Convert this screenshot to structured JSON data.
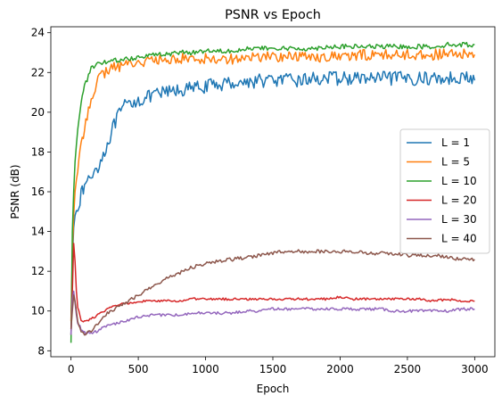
{
  "chart_data": {
    "type": "line",
    "title": "PSNR vs Epoch",
    "xlabel": "Epoch",
    "ylabel": "PSNR (dB)",
    "xlim": [
      -150,
      3150
    ],
    "ylim": [
      7.7,
      24.3
    ],
    "xticks": [
      0,
      500,
      1000,
      1500,
      2000,
      2500,
      3000
    ],
    "yticks": [
      8,
      10,
      12,
      14,
      16,
      18,
      20,
      22,
      24
    ],
    "grid": false,
    "legend_position": "center-right",
    "series": [
      {
        "name": "L = 1",
        "color": "#1f77b4",
        "x": [
          0,
          10,
          20,
          30,
          50,
          75,
          100,
          150,
          200,
          250,
          300,
          350,
          400,
          450,
          500,
          600,
          700,
          800,
          900,
          1000,
          1100,
          1200,
          1300,
          1400,
          1500,
          1600,
          1700,
          1800,
          1900,
          2000,
          2100,
          2200,
          2300,
          2400,
          2500,
          2600,
          2700,
          2800,
          2900,
          3000
        ],
        "y": [
          8.8,
          12.5,
          14.2,
          14.8,
          15.3,
          15.8,
          16.3,
          16.8,
          17.3,
          18.0,
          19.0,
          19.8,
          20.3,
          20.5,
          20.6,
          20.8,
          21.0,
          21.1,
          21.2,
          21.3,
          21.4,
          21.5,
          21.5,
          21.6,
          21.6,
          21.6,
          21.6,
          21.7,
          21.7,
          21.7,
          21.7,
          21.7,
          21.7,
          21.7,
          21.7,
          21.7,
          21.7,
          21.7,
          21.8,
          21.6
        ]
      },
      {
        "name": "L = 5",
        "color": "#ff7f0e",
        "x": [
          0,
          10,
          20,
          30,
          50,
          75,
          100,
          150,
          200,
          250,
          300,
          350,
          400,
          450,
          500,
          600,
          700,
          800,
          900,
          1000,
          1100,
          1200,
          1300,
          1400,
          1500,
          1600,
          1700,
          1800,
          1900,
          2000,
          2100,
          2200,
          2300,
          2400,
          2500,
          2600,
          2700,
          2800,
          2900,
          3000
        ],
        "y": [
          9.5,
          13.0,
          14.8,
          16.0,
          17.2,
          18.2,
          19.2,
          20.8,
          21.6,
          22.0,
          22.2,
          22.3,
          22.4,
          22.5,
          22.5,
          22.6,
          22.6,
          22.7,
          22.7,
          22.7,
          22.7,
          22.7,
          22.7,
          22.8,
          22.8,
          22.8,
          22.8,
          22.8,
          22.8,
          22.8,
          22.8,
          22.9,
          22.9,
          22.9,
          22.9,
          22.9,
          22.9,
          22.9,
          22.9,
          22.9
        ]
      },
      {
        "name": "L = 10",
        "color": "#2ca02c",
        "x": [
          0,
          10,
          20,
          30,
          50,
          75,
          100,
          150,
          200,
          250,
          300,
          350,
          400,
          450,
          500,
          600,
          700,
          800,
          900,
          1000,
          1100,
          1200,
          1300,
          1400,
          1500,
          1600,
          1700,
          1800,
          1900,
          2000,
          2100,
          2200,
          2300,
          2400,
          2500,
          2600,
          2700,
          2800,
          2900,
          3000
        ],
        "y": [
          8.4,
          14.0,
          16.0,
          17.5,
          19.2,
          20.5,
          21.3,
          22.2,
          22.4,
          22.5,
          22.6,
          22.6,
          22.7,
          22.7,
          22.8,
          22.9,
          22.9,
          23.0,
          23.0,
          23.1,
          23.1,
          23.1,
          23.2,
          23.2,
          23.2,
          23.2,
          23.2,
          23.2,
          23.3,
          23.3,
          23.3,
          23.3,
          23.3,
          23.3,
          23.3,
          23.3,
          23.3,
          23.4,
          23.4,
          23.4
        ]
      },
      {
        "name": "L = 20",
        "color": "#d62728",
        "x": [
          0,
          10,
          20,
          30,
          40,
          50,
          75,
          100,
          150,
          200,
          250,
          300,
          350,
          400,
          450,
          500,
          600,
          700,
          800,
          900,
          1000,
          1100,
          1200,
          1300,
          1400,
          1500,
          1600,
          1700,
          1800,
          1900,
          2000,
          2100,
          2200,
          2300,
          2400,
          2500,
          2600,
          2700,
          2800,
          2900,
          3000
        ],
        "y": [
          8.8,
          11.0,
          13.4,
          12.5,
          11.0,
          10.2,
          9.5,
          9.5,
          9.6,
          9.8,
          10.0,
          10.2,
          10.3,
          10.4,
          10.4,
          10.5,
          10.5,
          10.5,
          10.5,
          10.6,
          10.6,
          10.6,
          10.6,
          10.6,
          10.6,
          10.6,
          10.6,
          10.6,
          10.6,
          10.6,
          10.7,
          10.6,
          10.6,
          10.6,
          10.6,
          10.6,
          10.6,
          10.5,
          10.6,
          10.5,
          10.5
        ]
      },
      {
        "name": "L = 30",
        "color": "#9467bd",
        "x": [
          0,
          10,
          20,
          30,
          40,
          50,
          75,
          100,
          150,
          200,
          250,
          300,
          350,
          400,
          450,
          500,
          600,
          700,
          800,
          900,
          1000,
          1100,
          1200,
          1300,
          1400,
          1500,
          1600,
          1700,
          1800,
          1900,
          2000,
          2100,
          2200,
          2300,
          2400,
          2500,
          2600,
          2700,
          2800,
          2900,
          3000
        ],
        "y": [
          8.8,
          10.6,
          11.0,
          10.4,
          9.8,
          9.4,
          9.1,
          8.9,
          8.9,
          9.0,
          9.2,
          9.3,
          9.4,
          9.5,
          9.6,
          9.7,
          9.8,
          9.8,
          9.8,
          9.9,
          9.9,
          9.9,
          9.9,
          10.0,
          10.0,
          10.1,
          10.1,
          10.1,
          10.1,
          10.1,
          10.1,
          10.1,
          10.1,
          10.1,
          10.0,
          10.0,
          10.0,
          10.0,
          10.0,
          10.1,
          10.1
        ]
      },
      {
        "name": "L = 40",
        "color": "#8c564b",
        "x": [
          0,
          10,
          20,
          30,
          40,
          50,
          75,
          100,
          150,
          200,
          250,
          300,
          350,
          400,
          450,
          500,
          600,
          700,
          800,
          900,
          1000,
          1100,
          1200,
          1300,
          1400,
          1500,
          1600,
          1700,
          1800,
          1900,
          2000,
          2100,
          2200,
          2300,
          2400,
          2500,
          2600,
          2700,
          2800,
          2900,
          3000
        ],
        "y": [
          9.1,
          10.0,
          10.8,
          10.5,
          10.0,
          9.5,
          9.0,
          8.8,
          9.0,
          9.4,
          9.8,
          10.0,
          10.2,
          10.4,
          10.6,
          10.8,
          11.2,
          11.6,
          11.9,
          12.2,
          12.4,
          12.5,
          12.6,
          12.7,
          12.8,
          12.9,
          13.0,
          13.0,
          13.0,
          13.0,
          13.0,
          13.0,
          12.9,
          12.9,
          12.9,
          12.8,
          12.8,
          12.8,
          12.7,
          12.6,
          12.6
        ]
      }
    ]
  }
}
